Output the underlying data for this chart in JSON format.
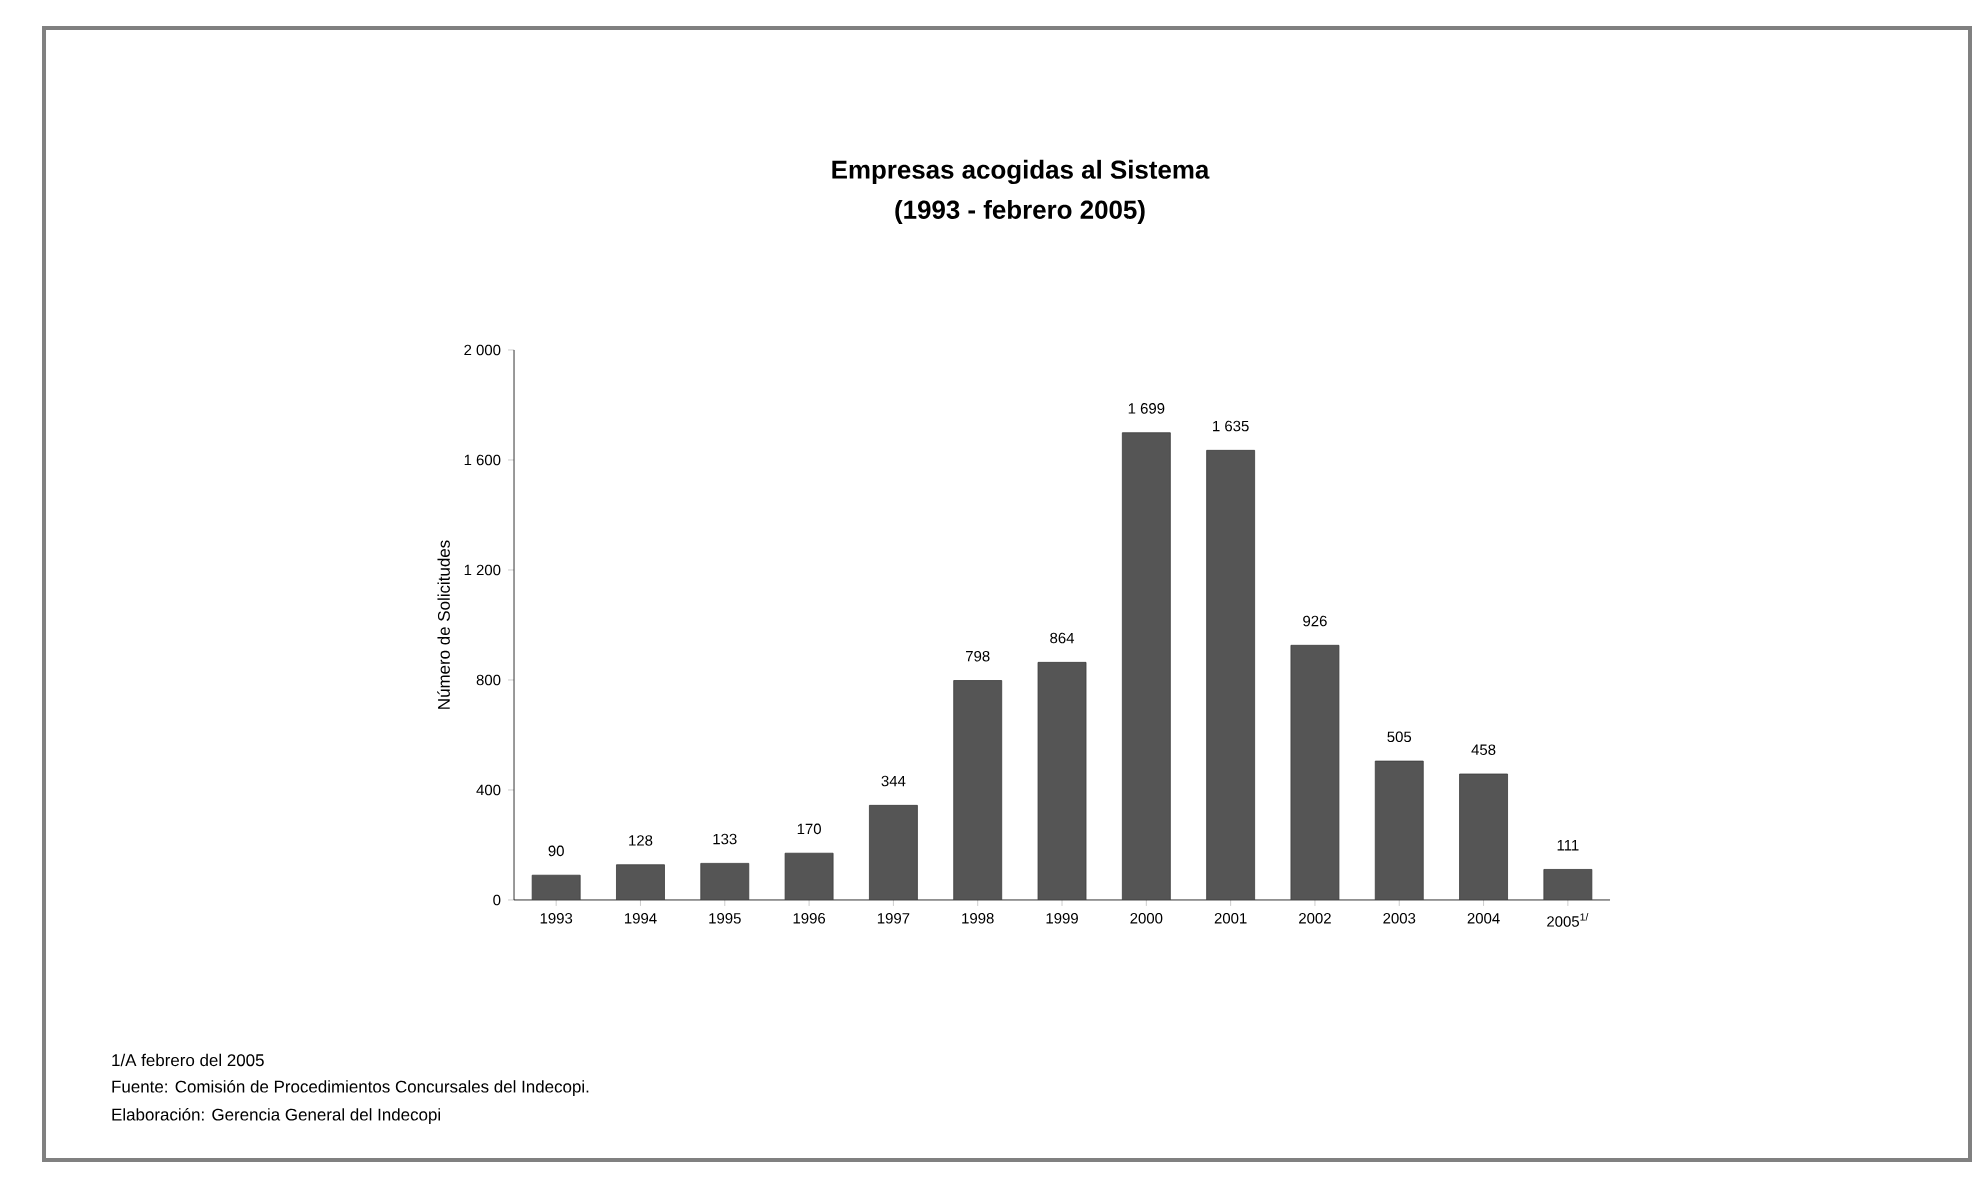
{
  "chart_data": {
    "type": "bar",
    "title": "Empresas acogidas al Sistema",
    "subtitle": "(1993 - febrero 2005)",
    "ylabel": "Número de Solicitudes",
    "categories": [
      "1993",
      "1994",
      "1995",
      "1996",
      "1997",
      "1998",
      "1999",
      "2000",
      "2001",
      "2002",
      "2003",
      "2004",
      "2005$^{1/}$"
    ],
    "values": [
      90,
      128,
      133,
      170,
      344,
      798,
      864,
      1699,
      1635,
      926,
      505,
      458,
      111
    ],
    "value_labels": [
      "90",
      "128",
      "133",
      "170",
      "344",
      "798",
      "864",
      "1 699",
      "1 635",
      "926",
      "505",
      "458",
      "111"
    ],
    "color": "#555555",
    "ylim": [
      0,
      2000
    ],
    "yticks": [
      0,
      400,
      800,
      {
        "value": 1200,
        "label": "1 200"
      },
      {
        "value": 1600,
        "label": "1 600"
      },
      {
        "value": 2000,
        "label": "2 000"
      }
    ],
    "grid": false,
    "annotations": [
      "1/A febrero del 2005",
      "Fuente: Comisión de Procedimientos Concursales del Indecopi.",
      "Elaboración: Gerencia General del Indecopi"
    ]
  }
}
